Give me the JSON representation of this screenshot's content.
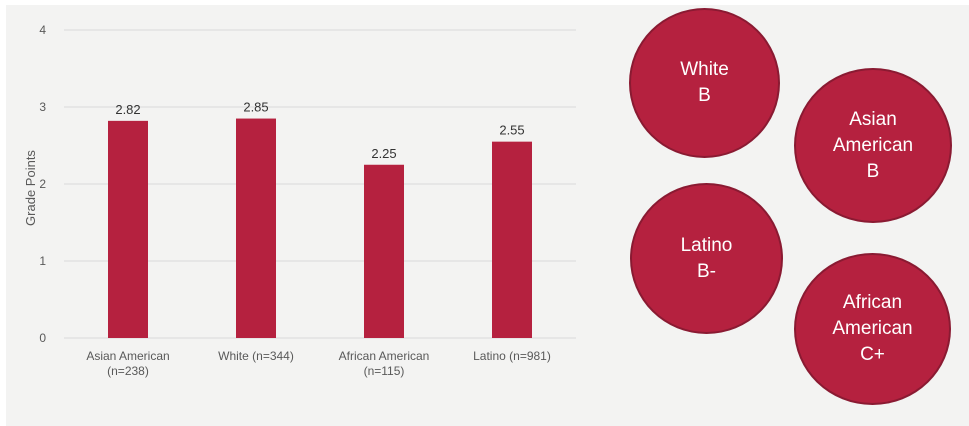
{
  "chart_data": {
    "type": "bar",
    "categories": [
      [
        "Asian American",
        "(n=238)"
      ],
      [
        "White (n=344)"
      ],
      [
        "African American",
        "(n=115)"
      ],
      [
        "Latino (n=981)"
      ]
    ],
    "values": [
      2.82,
      2.85,
      2.25,
      2.55
    ],
    "data_labels": [
      "2.82",
      "2.85",
      "2.25",
      "2.55"
    ],
    "ylabel": "Grade Points",
    "ylim": [
      0,
      4
    ],
    "yticks": [
      0,
      1,
      2,
      3,
      4
    ],
    "ytick_labels": [
      "0",
      "1",
      "2",
      "3",
      "4"
    ],
    "grid": true,
    "bar_color": "#b5213f"
  },
  "bubbles": [
    {
      "id": "white",
      "lines": [
        "White",
        "B"
      ]
    },
    {
      "id": "asian-american",
      "lines": [
        "Asian",
        "American",
        "B"
      ]
    },
    {
      "id": "latino",
      "lines": [
        "Latino",
        "B-"
      ]
    },
    {
      "id": "african-american",
      "lines": [
        "African",
        "American",
        "C+"
      ]
    }
  ],
  "colors": {
    "bubble_fill": "#b5213f",
    "bubble_border": "#8a1a32",
    "background": "#f3f3f2",
    "gridline": "#dadada"
  }
}
